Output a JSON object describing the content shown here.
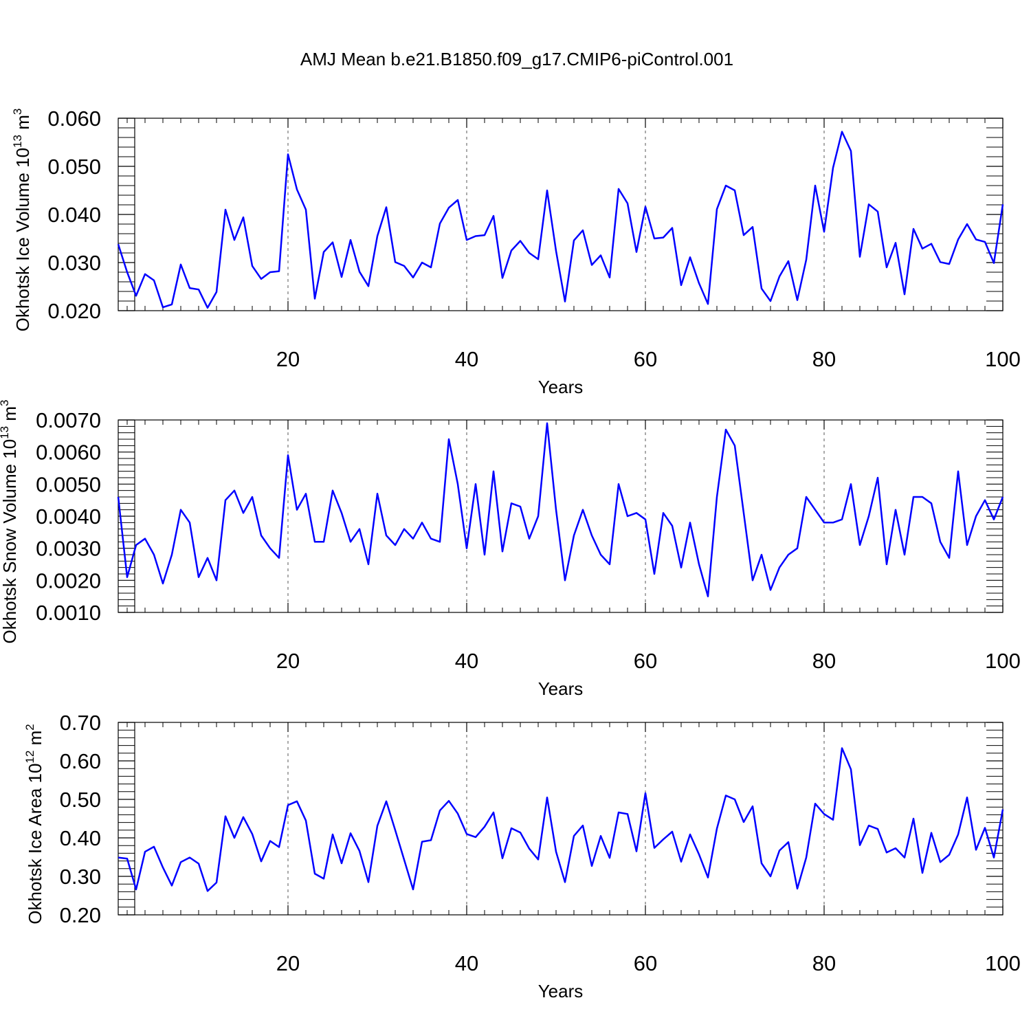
{
  "title": "AMJ Mean b.e21.B1850.f09_g17.CMIP6-piControl.001",
  "line_color": "#0000ff",
  "chart_data": [
    {
      "type": "line",
      "xlabel": "Years",
      "ylabel": "Okhotsk Ice Volume 10",
      "ylabel_sup": "13",
      "ylabel_unit": " m",
      "ylabel_unit_sup": "3",
      "xlim": [
        1,
        100
      ],
      "ylim": [
        0.02,
        0.06
      ],
      "xticks": [
        20,
        40,
        60,
        80,
        100
      ],
      "xtick_labels": [
        "20",
        "40",
        "60",
        "80",
        "100"
      ],
      "yticks": [
        0.02,
        0.03,
        0.04,
        0.05,
        0.06
      ],
      "ytick_labels": [
        "0.020",
        "0.030",
        "0.040",
        "0.050",
        "0.060"
      ],
      "grid": "dashed vertical at major x ticks",
      "series": [
        {
          "x_start": 1,
          "values": [
            0.0338,
            0.028,
            0.0231,
            0.0276,
            0.0263,
            0.0207,
            0.0213,
            0.0296,
            0.0247,
            0.0244,
            0.0206,
            0.0239,
            0.041,
            0.0347,
            0.0394,
            0.0293,
            0.0266,
            0.028,
            0.0282,
            0.0525,
            0.0452,
            0.041,
            0.0225,
            0.0322,
            0.0342,
            0.027,
            0.0347,
            0.0281,
            0.0251,
            0.0355,
            0.0415,
            0.0301,
            0.0293,
            0.0269,
            0.03,
            0.029,
            0.0381,
            0.0414,
            0.043,
            0.0347,
            0.0355,
            0.0357,
            0.0397,
            0.0268,
            0.0325,
            0.0345,
            0.032,
            0.0307,
            0.045,
            0.0324,
            0.0219,
            0.0346,
            0.0367,
            0.0295,
            0.0315,
            0.0269,
            0.0453,
            0.0423,
            0.0322,
            0.0416,
            0.035,
            0.0352,
            0.0372,
            0.0253,
            0.0311,
            0.0257,
            0.0214,
            0.0411,
            0.046,
            0.045,
            0.0357,
            0.0374,
            0.0246,
            0.022,
            0.0271,
            0.0303,
            0.0222,
            0.0306,
            0.046,
            0.0364,
            0.0497,
            0.0572,
            0.0532,
            0.0312,
            0.0421,
            0.0406,
            0.029,
            0.0341,
            0.0234,
            0.037,
            0.0329,
            0.0339,
            0.0301,
            0.0297,
            0.0348,
            0.038,
            0.0348,
            0.0343,
            0.0299,
            0.0421
          ]
        }
      ]
    },
    {
      "type": "line",
      "xlabel": "Years",
      "ylabel": "Okhotsk Snow Volume 10",
      "ylabel_sup": "13",
      "ylabel_unit": " m",
      "ylabel_unit_sup": "3",
      "xlim": [
        1,
        100
      ],
      "ylim": [
        0.001,
        0.007
      ],
      "xticks": [
        20,
        40,
        60,
        80,
        100
      ],
      "xtick_labels": [
        "20",
        "40",
        "60",
        "80",
        "100"
      ],
      "yticks": [
        0.001,
        0.002,
        0.003,
        0.004,
        0.005,
        0.006,
        0.007
      ],
      "ytick_labels": [
        "0.0010",
        "0.0020",
        "0.0030",
        "0.0040",
        "0.0050",
        "0.0060",
        "0.0070"
      ],
      "grid": "dashed vertical at major x ticks",
      "series": [
        {
          "x_start": 1,
          "values": [
            0.0046,
            0.0021,
            0.0031,
            0.0033,
            0.0028,
            0.0019,
            0.0028,
            0.0042,
            0.0038,
            0.0021,
            0.0027,
            0.002,
            0.0045,
            0.0048,
            0.0041,
            0.0046,
            0.0034,
            0.003,
            0.0027,
            0.0059,
            0.0042,
            0.0047,
            0.0032,
            0.0032,
            0.0048,
            0.0041,
            0.0032,
            0.0036,
            0.0025,
            0.0047,
            0.0034,
            0.0031,
            0.0036,
            0.0033,
            0.0038,
            0.0033,
            0.0032,
            0.0064,
            0.005,
            0.003,
            0.005,
            0.0028,
            0.0054,
            0.0029,
            0.0044,
            0.0043,
            0.0033,
            0.004,
            0.0069,
            0.0042,
            0.002,
            0.0034,
            0.0042,
            0.0034,
            0.0028,
            0.0025,
            0.005,
            0.004,
            0.0041,
            0.0039,
            0.0022,
            0.0041,
            0.0037,
            0.0024,
            0.0038,
            0.0025,
            0.0015,
            0.0046,
            0.0067,
            0.0062,
            0.0041,
            0.002,
            0.0028,
            0.0017,
            0.0024,
            0.0028,
            0.003,
            0.0046,
            0.0042,
            0.0038,
            0.0038,
            0.0039,
            0.005,
            0.0031,
            0.004,
            0.0052,
            0.0025,
            0.0042,
            0.0028,
            0.0046,
            0.0046,
            0.0044,
            0.0032,
            0.0027,
            0.0054,
            0.0031,
            0.004,
            0.0045,
            0.0039,
            0.0046
          ]
        }
      ]
    },
    {
      "type": "line",
      "xlabel": "Years",
      "ylabel": "Okhotsk Ice Area 10",
      "ylabel_sup": "12",
      "ylabel_unit": " m",
      "ylabel_unit_sup": "2",
      "xlim": [
        1,
        100
      ],
      "ylim": [
        0.2,
        0.7
      ],
      "xticks": [
        20,
        40,
        60,
        80,
        100
      ],
      "xtick_labels": [
        "20",
        "40",
        "60",
        "80",
        "100"
      ],
      "yticks": [
        0.2,
        0.3,
        0.4,
        0.5,
        0.6,
        0.7
      ],
      "ytick_labels": [
        "0.20",
        "0.30",
        "0.40",
        "0.50",
        "0.60",
        "0.70"
      ],
      "grid": "dashed vertical at major x ticks",
      "series": [
        {
          "x_start": 1,
          "values": [
            0.349,
            0.346,
            0.266,
            0.364,
            0.377,
            0.323,
            0.276,
            0.337,
            0.349,
            0.333,
            0.262,
            0.284,
            0.456,
            0.4,
            0.454,
            0.41,
            0.339,
            0.392,
            0.376,
            0.485,
            0.495,
            0.445,
            0.307,
            0.294,
            0.409,
            0.334,
            0.412,
            0.366,
            0.285,
            0.431,
            0.495,
            0.42,
            0.343,
            0.266,
            0.39,
            0.394,
            0.471,
            0.496,
            0.463,
            0.41,
            0.402,
            0.429,
            0.466,
            0.347,
            0.425,
            0.414,
            0.372,
            0.344,
            0.505,
            0.364,
            0.285,
            0.405,
            0.432,
            0.327,
            0.405,
            0.348,
            0.466,
            0.462,
            0.365,
            0.516,
            0.374,
            0.396,
            0.416,
            0.338,
            0.409,
            0.357,
            0.297,
            0.424,
            0.51,
            0.5,
            0.441,
            0.482,
            0.334,
            0.3,
            0.367,
            0.389,
            0.268,
            0.349,
            0.489,
            0.462,
            0.447,
            0.633,
            0.578,
            0.381,
            0.432,
            0.423,
            0.362,
            0.373,
            0.349,
            0.45,
            0.309,
            0.413,
            0.337,
            0.356,
            0.409,
            0.505,
            0.369,
            0.426,
            0.349,
            0.474
          ]
        }
      ]
    }
  ]
}
